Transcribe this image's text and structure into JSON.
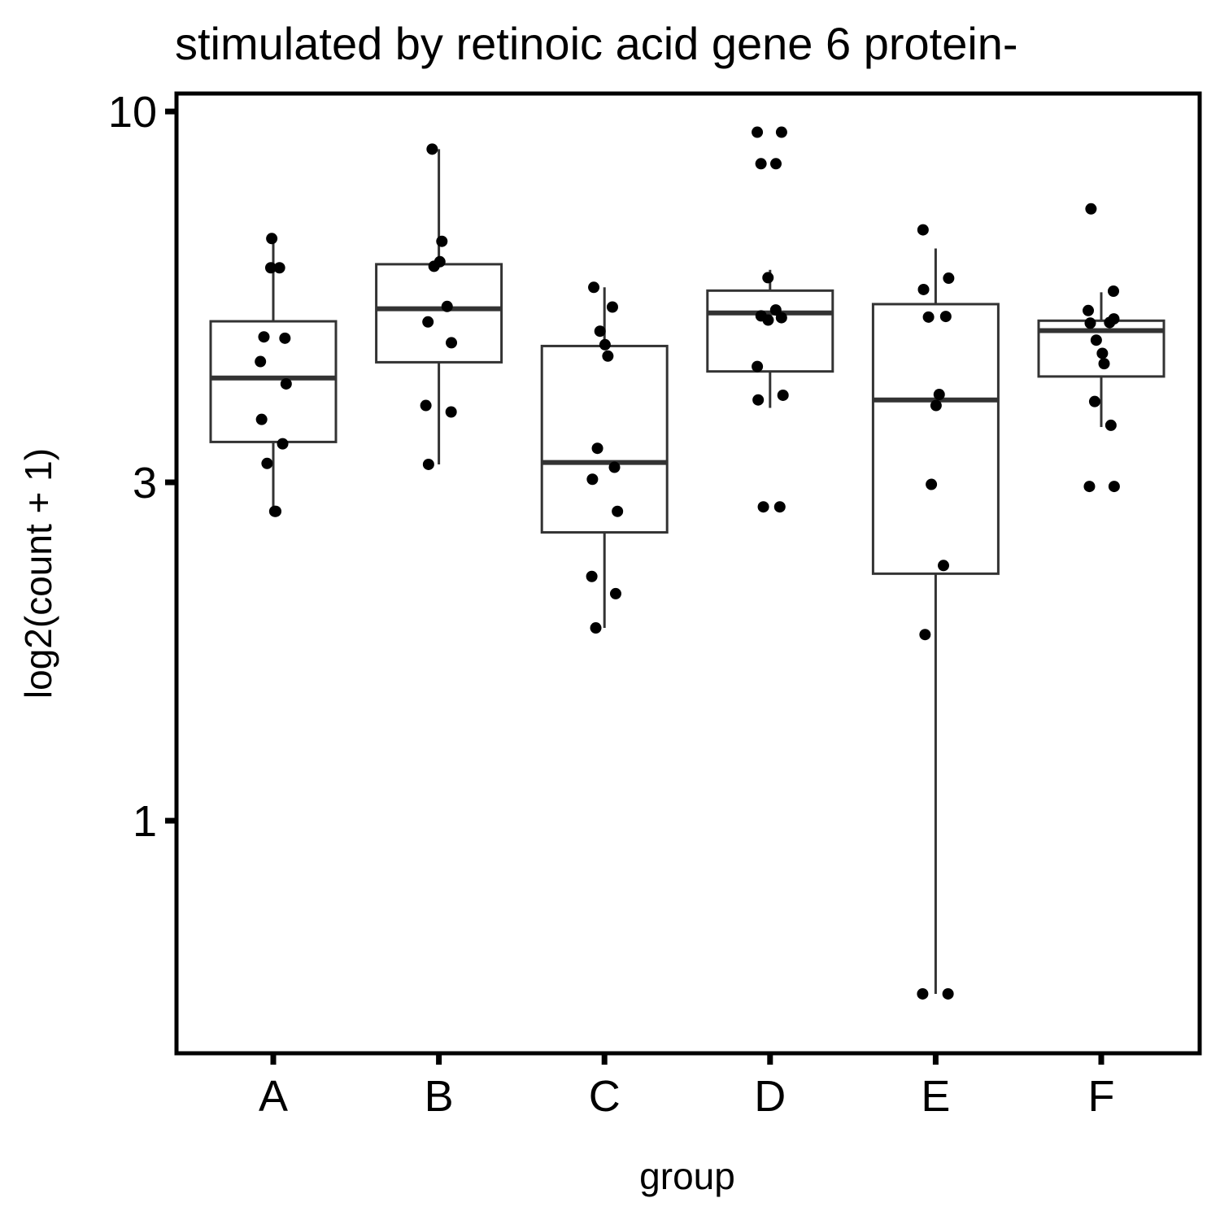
{
  "chart_data": {
    "type": "boxplot",
    "title": "stimulated by retinoic acid gene 6 protein-",
    "xlabel": "group",
    "ylabel": "log2(count + 1)",
    "y_scale": "log10",
    "ylim": [
      0.47,
      10.6
    ],
    "y_ticks": [
      {
        "value": 1,
        "label": "1"
      },
      {
        "value": 3,
        "label": "3"
      },
      {
        "value": 10,
        "label": "10"
      }
    ],
    "categories": [
      "A",
      "B",
      "C",
      "D",
      "E",
      "F"
    ],
    "colors": {
      "box_stroke": "#333333",
      "point": "#000000",
      "frame": "#000000"
    },
    "boxes": [
      {
        "group": "A",
        "whisker_low": 2.73,
        "q1": 3.42,
        "median": 4.21,
        "q3": 5.06,
        "whisker_high": 6.62
      },
      {
        "group": "B",
        "whisker_low": 3.18,
        "q1": 4.43,
        "median": 5.27,
        "q3": 6.09,
        "whisker_high": 8.85
      },
      {
        "group": "C",
        "whisker_low": 1.87,
        "q1": 2.55,
        "median": 3.2,
        "q3": 4.67,
        "whisker_high": 5.65
      },
      {
        "group": "D",
        "whisker_low": 3.82,
        "q1": 4.3,
        "median": 5.2,
        "q3": 5.59,
        "whisker_high": 5.98
      },
      {
        "group": "E",
        "whisker_low": 0.57,
        "q1": 2.23,
        "median": 3.92,
        "q3": 5.35,
        "whisker_high": 6.41
      },
      {
        "group": "F",
        "whisker_low": 3.59,
        "q1": 4.23,
        "median": 4.91,
        "q3": 5.07,
        "whisker_high": 5.56
      }
    ],
    "points": {
      "A": [
        6.62,
        6.02,
        6.02,
        4.81,
        4.79,
        4.44,
        4.13,
        3.68,
        3.4,
        3.19,
        2.73,
        2.73
      ],
      "B": [
        8.85,
        6.56,
        6.14,
        6.05,
        5.31,
        5.05,
        4.72,
        3.85,
        3.77,
        3.18
      ],
      "C": [
        5.65,
        5.3,
        4.9,
        4.69,
        4.52,
        3.35,
        3.15,
        3.03,
        2.73,
        2.21,
        2.09,
        1.87
      ],
      "D": [
        9.35,
        9.35,
        8.44,
        8.44,
        5.83,
        5.08,
        5.25,
        5.15,
        5.12,
        4.37,
        3.98,
        3.92,
        2.77,
        2.77
      ],
      "E": [
        6.81,
        5.82,
        5.61,
        5.14,
        5.13,
        3.99,
        3.85,
        2.98,
        2.29,
        1.83,
        0.57,
        0.57
      ],
      "F": [
        7.29,
        5.58,
        5.24,
        5.1,
        5.03,
        5.04,
        4.76,
        4.56,
        4.41,
        3.9,
        3.61,
        2.96,
        2.96
      ]
    }
  }
}
